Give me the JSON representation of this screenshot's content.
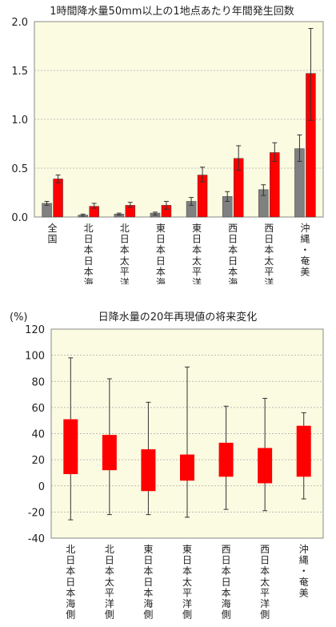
{
  "chart_data": [
    {
      "type": "bar",
      "title": "1時間降水量50mm以上の1地点あたり年間発生回数",
      "xlabel": "",
      "ylabel": "",
      "ylim": [
        0,
        2.0
      ],
      "yticks": [
        "0.0",
        "0.5",
        "1.0",
        "1.5",
        "2.0"
      ],
      "grid": true,
      "categories": [
        "全国",
        "北日本日本海側",
        "北日本太平洋側",
        "東日本日本海側",
        "東日本太平洋側",
        "西日本日本海側",
        "西日本太平洋側",
        "沖縄・奄美"
      ],
      "series": [
        {
          "color": "#808080",
          "values": [
            0.14,
            0.02,
            0.03,
            0.04,
            0.16,
            0.21,
            0.28,
            0.7
          ],
          "err_low": [
            0.12,
            0.01,
            0.02,
            0.02,
            0.12,
            0.16,
            0.22,
            0.57
          ],
          "err_high": [
            0.16,
            0.03,
            0.04,
            0.05,
            0.2,
            0.26,
            0.33,
            0.84
          ]
        },
        {
          "color": "#ff0000",
          "values": [
            0.39,
            0.11,
            0.12,
            0.12,
            0.43,
            0.6,
            0.66,
            1.47
          ],
          "err_low": [
            0.35,
            0.09,
            0.1,
            0.08,
            0.36,
            0.48,
            0.57,
            0.99
          ],
          "err_high": [
            0.43,
            0.14,
            0.15,
            0.16,
            0.51,
            0.73,
            0.76,
            1.93
          ]
        }
      ]
    },
    {
      "type": "boxplot",
      "title": "日降水量の20年再現値の将来変化",
      "unit": "(%)",
      "xlabel": "",
      "ylabel": "",
      "ylim": [
        -40,
        120
      ],
      "yticks": [
        "-40",
        "-20",
        "0",
        "20",
        "40",
        "60",
        "80",
        "100",
        "120"
      ],
      "grid": true,
      "categories": [
        "北日本日本海側",
        "北日本太平洋側",
        "東日本日本海側",
        "東日本太平洋側",
        "西日本日本海側",
        "西日本太平洋側",
        "沖縄・奄美"
      ],
      "color": "#ff0000",
      "box_low": [
        9,
        12,
        -4,
        4,
        7,
        2,
        7
      ],
      "box_high": [
        51,
        39,
        28,
        24,
        33,
        29,
        46
      ],
      "whisker_low": [
        -26,
        -22,
        -22,
        -24,
        -18,
        -19,
        -10
      ],
      "whisker_high": [
        98,
        82,
        64,
        91,
        61,
        67,
        56
      ]
    }
  ]
}
